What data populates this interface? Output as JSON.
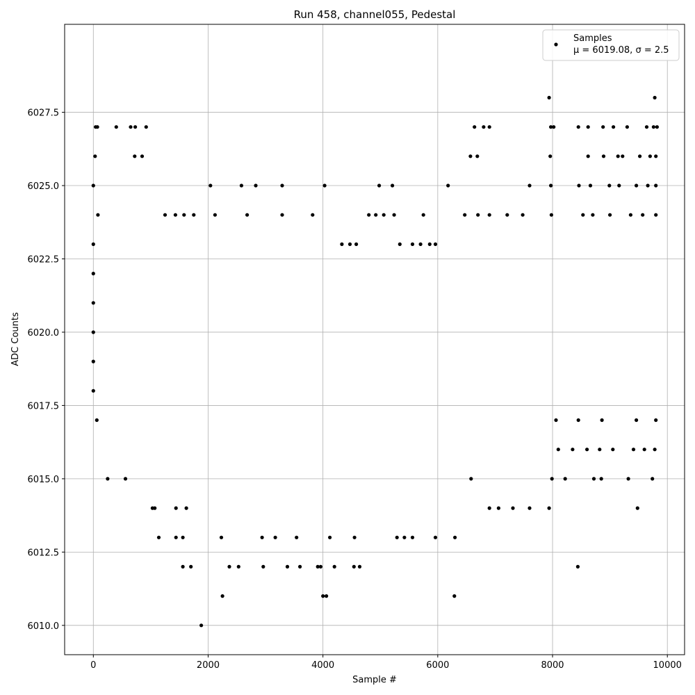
{
  "chart_data": {
    "type": "scatter",
    "title": "Run 458, channel055, Pedestal",
    "xlabel": "Sample #",
    "ylabel": "ADC Counts",
    "xlim": [
      -500,
      10300
    ],
    "ylim": [
      6009.0,
      6030.5
    ],
    "xticks": [
      0,
      2000,
      4000,
      6000,
      8000,
      10000
    ],
    "xtick_labels": [
      "0",
      "2000",
      "4000",
      "6000",
      "8000",
      "10000"
    ],
    "yticks": [
      6010.0,
      6012.5,
      6015.0,
      6017.5,
      6020.0,
      6022.5,
      6025.0,
      6027.5
    ],
    "ytick_labels": [
      "6010.0",
      "6012.5",
      "6015.0",
      "6017.5",
      "6020.0",
      "6022.5",
      "6025.0",
      "6027.5"
    ],
    "grid": true,
    "marker_color": "#000000",
    "legend": {
      "placement": "top-right",
      "label": "Samples",
      "sublabel": "μ = 6019.08, σ = 2.5"
    },
    "series": [
      {
        "name": "Samples",
        "points": [
          [
            0,
            6018
          ],
          [
            0,
            6019
          ],
          [
            0,
            6020
          ],
          [
            0,
            6021
          ],
          [
            0,
            6022
          ],
          [
            0,
            6023
          ],
          [
            0,
            6025
          ],
          [
            30,
            6026
          ],
          [
            40,
            6027
          ],
          [
            70,
            6027
          ],
          [
            80,
            6024
          ],
          [
            60,
            6017
          ],
          [
            400,
            6027
          ],
          [
            650,
            6027
          ],
          [
            730,
            6027
          ],
          [
            920,
            6027
          ],
          [
            720,
            6026
          ],
          [
            850,
            6026
          ],
          [
            2040,
            6025
          ],
          [
            2580,
            6025
          ],
          [
            2830,
            6025
          ],
          [
            3290,
            6025
          ],
          [
            4030,
            6025
          ],
          [
            4980,
            6025
          ],
          [
            5210,
            6025
          ],
          [
            6180,
            6025
          ],
          [
            1250,
            6024
          ],
          [
            1430,
            6024
          ],
          [
            1580,
            6024
          ],
          [
            1750,
            6024
          ],
          [
            2120,
            6024
          ],
          [
            2680,
            6024
          ],
          [
            3290,
            6024
          ],
          [
            3820,
            6024
          ],
          [
            4800,
            6024
          ],
          [
            4920,
            6024
          ],
          [
            5060,
            6024
          ],
          [
            5240,
            6024
          ],
          [
            5750,
            6024
          ],
          [
            4330,
            6023
          ],
          [
            4470,
            6023
          ],
          [
            4580,
            6023
          ],
          [
            5340,
            6023
          ],
          [
            5560,
            6023
          ],
          [
            5700,
            6023
          ],
          [
            5860,
            6023
          ],
          [
            5960,
            6023
          ],
          [
            250,
            6015
          ],
          [
            560,
            6015
          ],
          [
            6580,
            6015
          ],
          [
            7990,
            6015
          ],
          [
            8220,
            6015
          ],
          [
            8720,
            6015
          ],
          [
            8850,
            6015
          ],
          [
            9320,
            6015
          ],
          [
            9740,
            6015
          ],
          [
            1030,
            6014
          ],
          [
            1070,
            6014
          ],
          [
            1440,
            6014
          ],
          [
            1620,
            6014
          ],
          [
            6900,
            6014
          ],
          [
            7060,
            6014
          ],
          [
            7310,
            6014
          ],
          [
            7600,
            6014
          ],
          [
            7940,
            6014
          ],
          [
            9480,
            6014
          ],
          [
            1140,
            6013
          ],
          [
            1440,
            6013
          ],
          [
            1560,
            6013
          ],
          [
            2230,
            6013
          ],
          [
            2940,
            6013
          ],
          [
            3170,
            6013
          ],
          [
            3540,
            6013
          ],
          [
            4120,
            6013
          ],
          [
            4550,
            6013
          ],
          [
            5290,
            6013
          ],
          [
            5420,
            6013
          ],
          [
            5560,
            6013
          ],
          [
            5960,
            6013
          ],
          [
            6300,
            6013
          ],
          [
            1560,
            6012
          ],
          [
            1700,
            6012
          ],
          [
            2370,
            6012
          ],
          [
            2530,
            6012
          ],
          [
            2960,
            6012
          ],
          [
            3380,
            6012
          ],
          [
            3600,
            6012
          ],
          [
            3910,
            6012
          ],
          [
            3960,
            6012
          ],
          [
            4200,
            6012
          ],
          [
            4540,
            6012
          ],
          [
            4640,
            6012
          ],
          [
            8440,
            6012
          ],
          [
            2250,
            6011
          ],
          [
            4000,
            6011
          ],
          [
            4060,
            6011
          ],
          [
            6290,
            6011
          ],
          [
            1880,
            6010
          ],
          [
            6640,
            6027
          ],
          [
            6800,
            6027
          ],
          [
            6900,
            6027
          ],
          [
            7970,
            6027
          ],
          [
            8020,
            6027
          ],
          [
            8450,
            6027
          ],
          [
            8620,
            6027
          ],
          [
            8880,
            6027
          ],
          [
            9060,
            6027
          ],
          [
            9300,
            6027
          ],
          [
            9640,
            6027
          ],
          [
            9760,
            6027
          ],
          [
            9820,
            6027
          ],
          [
            7940,
            6028
          ],
          [
            9780,
            6028
          ],
          [
            6570,
            6026
          ],
          [
            6690,
            6026
          ],
          [
            7960,
            6026
          ],
          [
            8620,
            6026
          ],
          [
            8890,
            6026
          ],
          [
            9140,
            6026
          ],
          [
            9220,
            6026
          ],
          [
            9520,
            6026
          ],
          [
            9700,
            6026
          ],
          [
            9800,
            6026
          ],
          [
            7600,
            6025
          ],
          [
            7970,
            6025
          ],
          [
            8460,
            6025
          ],
          [
            8660,
            6025
          ],
          [
            8990,
            6025
          ],
          [
            9160,
            6025
          ],
          [
            9460,
            6025
          ],
          [
            9660,
            6025
          ],
          [
            9800,
            6025
          ],
          [
            6470,
            6024
          ],
          [
            6700,
            6024
          ],
          [
            6900,
            6024
          ],
          [
            7210,
            6024
          ],
          [
            7480,
            6024
          ],
          [
            7980,
            6024
          ],
          [
            8530,
            6024
          ],
          [
            8700,
            6024
          ],
          [
            9000,
            6024
          ],
          [
            9360,
            6024
          ],
          [
            9570,
            6024
          ],
          [
            9800,
            6024
          ],
          [
            8100,
            6016
          ],
          [
            8350,
            6016
          ],
          [
            8600,
            6016
          ],
          [
            8820,
            6016
          ],
          [
            9050,
            6016
          ],
          [
            9410,
            6016
          ],
          [
            9600,
            6016
          ],
          [
            9780,
            6016
          ],
          [
            8060,
            6017
          ],
          [
            8450,
            6017
          ],
          [
            8860,
            6017
          ],
          [
            9460,
            6017
          ],
          [
            9800,
            6017
          ]
        ]
      }
    ]
  }
}
